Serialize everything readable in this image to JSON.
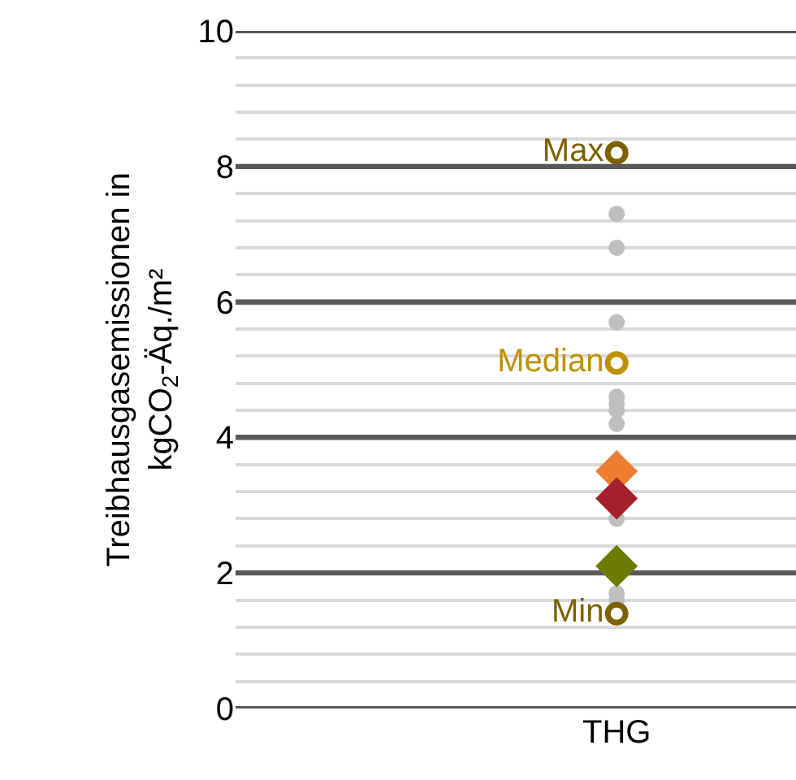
{
  "chart_data": {
    "type": "scatter",
    "ylabel": "Treibhausgasemissionen in kgCO$_{2}$-Äq./m²",
    "categories": [
      "THG"
    ],
    "series": [
      {
        "color": "#bfbfbf",
        "marker": "circle",
        "x": [
          "THG",
          "THG",
          "THG",
          "THG",
          "THG",
          "THG",
          "THG",
          "THG",
          "THG",
          "THG"
        ],
        "values": [
          7.3,
          6.8,
          5.7,
          4.6,
          4.5,
          4.4,
          4.2,
          2.8,
          1.7,
          1.6
        ]
      },
      {
        "name": "Max",
        "color": "#7f6000",
        "marker": "circle",
        "x": [
          "THG"
        ],
        "values": [
          8.2
        ]
      },
      {
        "name": "Median",
        "color": "#bf9000",
        "marker": "circle",
        "x": [
          "THG"
        ],
        "values": [
          5.1
        ]
      },
      {
        "name": "Min",
        "color": "#7f6000",
        "marker": "circle",
        "x": [
          "THG"
        ],
        "values": [
          1.4
        ]
      },
      {
        "color": "#ed7d31",
        "marker": "diamond",
        "x": [
          "THG"
        ],
        "values": [
          3.5
        ]
      },
      {
        "color": "#a5202a",
        "marker": "diamond",
        "x": [
          "THG"
        ],
        "values": [
          3.1
        ]
      },
      {
        "color": "#6b7c00",
        "marker": "diamond",
        "x": [
          "THG"
        ],
        "values": [
          2.1
        ]
      }
    ],
    "ylim": [
      0,
      10
    ],
    "yticks": [
      0,
      2,
      4,
      6,
      8,
      10
    ],
    "grid": "y"
  }
}
